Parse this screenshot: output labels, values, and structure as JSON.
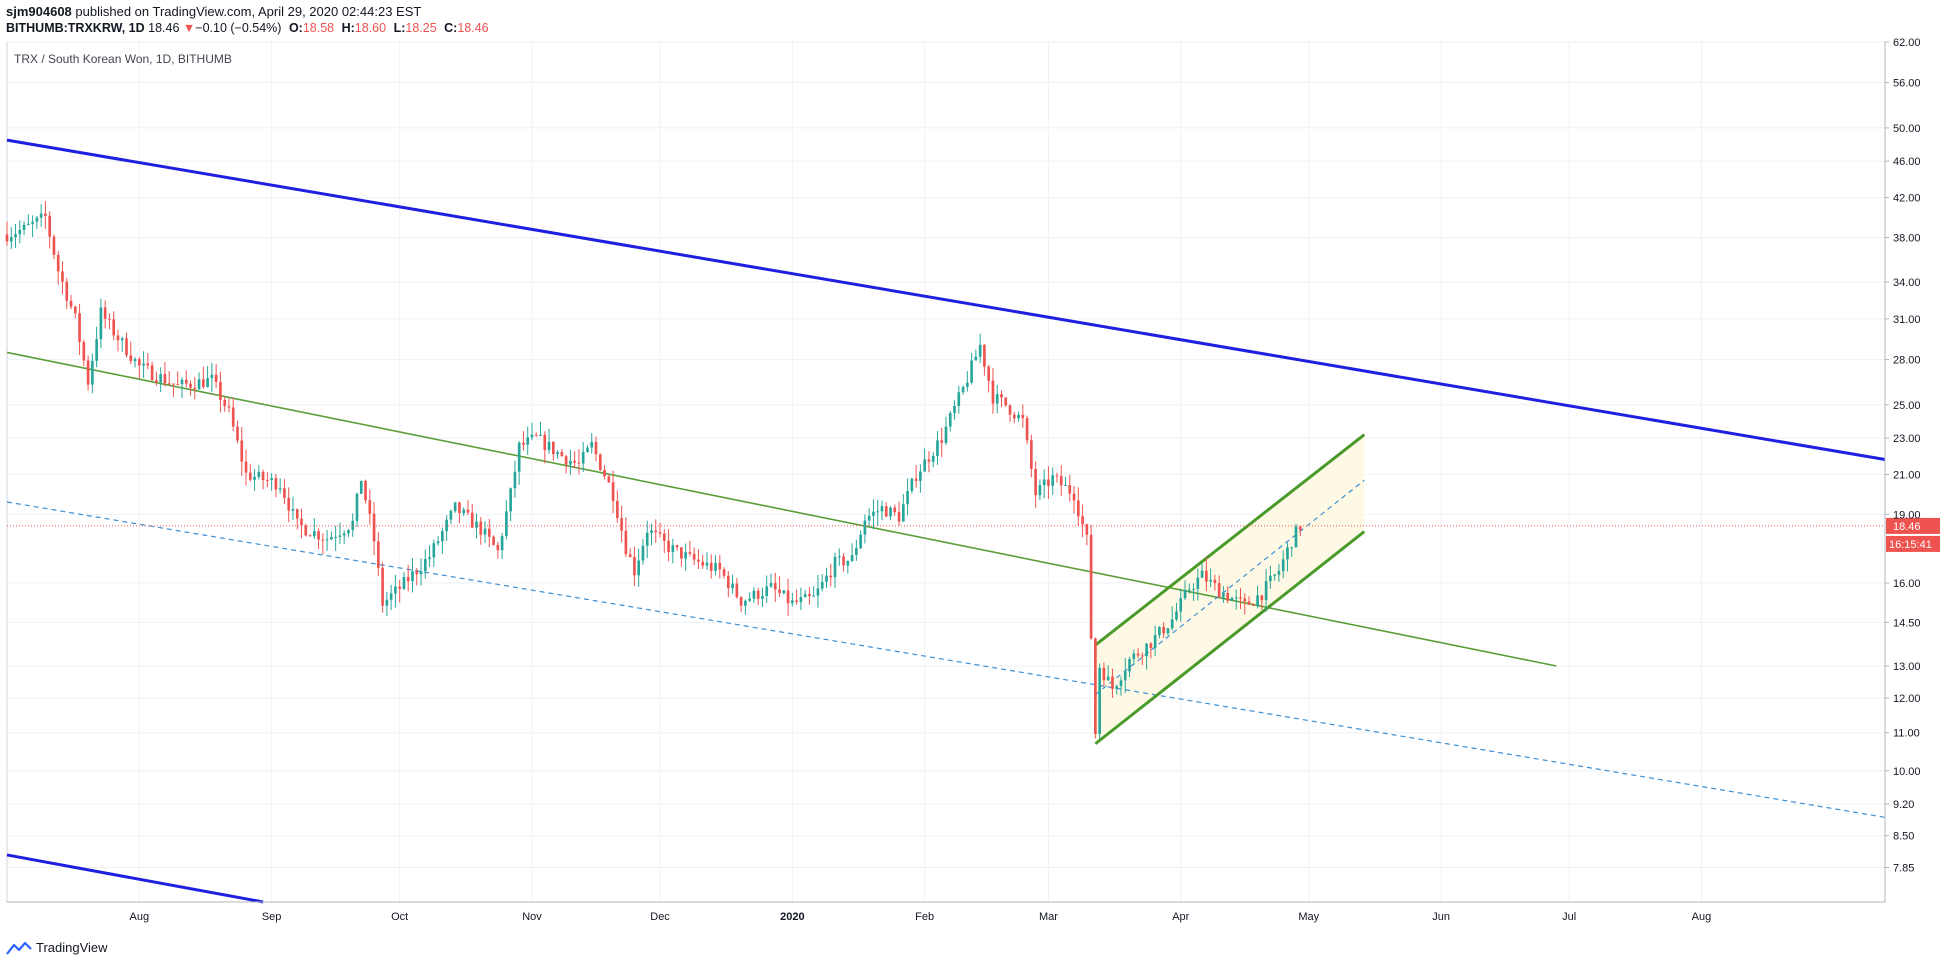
{
  "header": {
    "author": "sjm904608",
    "published_text": " published on TradingView.com, April 29, 2020 02:44:23 EST",
    "symbol": "BITHUMB:TRXKRW, 1D",
    "last": "18.46",
    "change": "−0.10 (−0.54%)",
    "open_label": "O:",
    "open": "18.58",
    "high_label": "H:",
    "high": "18.60",
    "low_label": "L:",
    "low": "18.25",
    "close_label": "C:",
    "close": "18.46"
  },
  "footer": {
    "brand": "TradingView"
  },
  "colors": {
    "up": "#26a69a",
    "down": "#ef5350",
    "trend_blue": "#1f1fe0",
    "trend_green": "#5a9e3a",
    "channel_green": "#4a9a2a",
    "dashed_blue": "#3d8fd6",
    "price_line": "#ef5350",
    "grid": "#eef2f6",
    "fill": "#fdf8e1"
  },
  "chart_data": {
    "type": "candlestick",
    "title": "TRX / South Korean Won, 1D, BITHUMB",
    "x_ticks": [
      "Aug",
      "Sep",
      "Oct",
      "Nov",
      "Dec",
      "2020",
      "Feb",
      "Mar",
      "Apr",
      "May",
      "Jun",
      "Jul",
      "Aug"
    ],
    "x_range": [
      "2019-07-01",
      "2020-09-13"
    ],
    "y_scale": "log",
    "y_range": [
      7.2,
      62
    ],
    "y_ticks": [
      "62.00",
      "56.00",
      "50.00",
      "46.00",
      "42.00",
      "38.00",
      "34.00",
      "31.00",
      "28.00",
      "25.00",
      "23.00",
      "21.00",
      "19.00",
      "16.00",
      "14.50",
      "13.00",
      "12.00",
      "11.00",
      "10.00",
      "9.20",
      "8.50",
      "7.85"
    ],
    "last_price": "18.46",
    "countdown": "16:15:41",
    "keypoints": [
      [
        "2019-07-01",
        38.3
      ],
      [
        "2019-07-05",
        38.8
      ],
      [
        "2019-07-10",
        40.0
      ],
      [
        "2019-07-13",
        35.0
      ],
      [
        "2019-07-17",
        31.0
      ],
      [
        "2019-07-20",
        26.5
      ],
      [
        "2019-07-23",
        31.5
      ],
      [
        "2019-07-26",
        30.0
      ],
      [
        "2019-08-01",
        27.5
      ],
      [
        "2019-08-10",
        26.2
      ],
      [
        "2019-08-18",
        26.6
      ],
      [
        "2019-08-22",
        24.5
      ],
      [
        "2019-08-26",
        21.0
      ],
      [
        "2019-09-03",
        20.5
      ],
      [
        "2019-09-07",
        18.5
      ],
      [
        "2019-09-14",
        17.9
      ],
      [
        "2019-09-20",
        18.6
      ],
      [
        "2019-09-22",
        20.8
      ],
      [
        "2019-09-25",
        17.8
      ],
      [
        "2019-09-27",
        15.2
      ],
      [
        "2019-10-01",
        15.8
      ],
      [
        "2019-10-08",
        17.1
      ],
      [
        "2019-10-14",
        19.3
      ],
      [
        "2019-10-20",
        18.3
      ],
      [
        "2019-10-24",
        17.3
      ],
      [
        "2019-10-27",
        20.0
      ],
      [
        "2019-10-29",
        22.5
      ],
      [
        "2019-11-02",
        23.0
      ],
      [
        "2019-11-08",
        22.0
      ],
      [
        "2019-11-12",
        21.5
      ],
      [
        "2019-11-15",
        22.6
      ],
      [
        "2019-11-20",
        20.0
      ],
      [
        "2019-11-23",
        17.5
      ],
      [
        "2019-11-25",
        16.5
      ],
      [
        "2019-11-28",
        18.3
      ],
      [
        "2019-12-03",
        17.5
      ],
      [
        "2019-12-08",
        17.0
      ],
      [
        "2019-12-15",
        16.5
      ],
      [
        "2019-12-20",
        15.3
      ],
      [
        "2019-12-27",
        15.8
      ],
      [
        "2020-01-01",
        15.2
      ],
      [
        "2020-01-06",
        15.4
      ],
      [
        "2020-01-11",
        16.8
      ],
      [
        "2020-01-15",
        17.0
      ],
      [
        "2020-01-18",
        18.8
      ],
      [
        "2020-01-22",
        19.3
      ],
      [
        "2020-01-26",
        18.9
      ],
      [
        "2020-01-30",
        21.0
      ],
      [
        "2020-02-05",
        23.0
      ],
      [
        "2020-02-10",
        26.0
      ],
      [
        "2020-02-14",
        29.0
      ],
      [
        "2020-02-17",
        25.5
      ],
      [
        "2020-02-20",
        25.0
      ],
      [
        "2020-02-24",
        24.0
      ],
      [
        "2020-02-27",
        20.0
      ],
      [
        "2020-03-02",
        20.8
      ],
      [
        "2020-03-07",
        20.0
      ],
      [
        "2020-03-10",
        17.8
      ],
      [
        "2020-03-12",
        11.0
      ],
      [
        "2020-03-13",
        13.0
      ],
      [
        "2020-03-16",
        12.3
      ],
      [
        "2020-03-20",
        13.2
      ],
      [
        "2020-03-25",
        13.8
      ],
      [
        "2020-03-30",
        14.6
      ],
      [
        "2020-04-03",
        15.8
      ],
      [
        "2020-04-06",
        16.3
      ],
      [
        "2020-04-10",
        15.7
      ],
      [
        "2020-04-16",
        15.1
      ],
      [
        "2020-04-20",
        15.6
      ],
      [
        "2020-04-24",
        16.5
      ],
      [
        "2020-04-27",
        17.8
      ],
      [
        "2020-04-29",
        18.46
      ]
    ],
    "drawings": [
      {
        "type": "upper-trendline",
        "points": [
          [
            "2019-07-01",
            48.5
          ],
          [
            "2020-09-13",
            21.8
          ]
        ]
      },
      {
        "type": "lower-trendline",
        "points": [
          [
            "2019-07-01",
            8.1
          ],
          [
            "2019-08-30",
            7.2
          ]
        ]
      },
      {
        "type": "mid-trendline",
        "points": [
          [
            "2019-07-01",
            28.5
          ],
          [
            "2020-06-28",
            13.0
          ]
        ]
      },
      {
        "type": "dashed-support",
        "points": [
          [
            "2019-07-01",
            19.6
          ],
          [
            "2020-09-13",
            8.9
          ]
        ]
      },
      {
        "type": "channel-upper",
        "points": [
          [
            "2020-03-12",
            13.7
          ],
          [
            "2020-05-14",
            23.2
          ]
        ]
      },
      {
        "type": "channel-lower",
        "points": [
          [
            "2020-03-12",
            10.7
          ],
          [
            "2020-05-14",
            18.2
          ]
        ]
      },
      {
        "type": "channel-mid",
        "points": [
          [
            "2020-03-12",
            12.1
          ],
          [
            "2020-05-14",
            20.7
          ]
        ]
      }
    ]
  }
}
